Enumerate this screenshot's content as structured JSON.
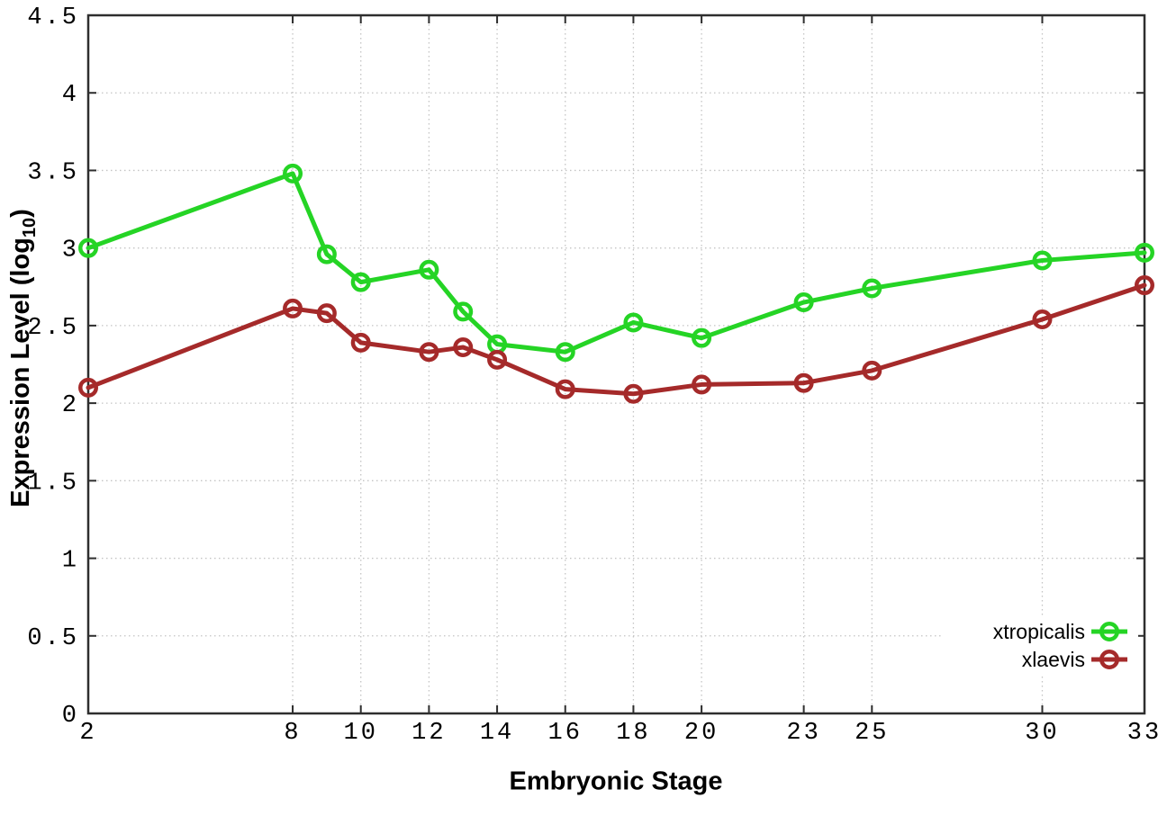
{
  "figure": {
    "background": "#ffffff",
    "xlabel": "Embryonic Stage",
    "ylabel_main": "Expression Level (log",
    "ylabel_sub": "10",
    "ylabel_close": ")"
  },
  "chart_data": {
    "type": "line",
    "title": "",
    "xlabel": "Embryonic Stage",
    "ylabel": "Expression Level (log10)",
    "x": [
      2,
      8,
      9,
      10,
      12,
      13,
      14,
      16,
      18,
      20,
      23,
      25,
      30,
      33
    ],
    "series": [
      {
        "name": "xtropicalis",
        "color": "#25d425",
        "values": [
          3.0,
          3.48,
          2.96,
          2.78,
          2.86,
          2.59,
          2.38,
          2.33,
          2.52,
          2.42,
          2.65,
          2.74,
          2.92,
          2.97
        ]
      },
      {
        "name": "xlaevis",
        "color": "#a52a2a",
        "values": [
          2.1,
          2.61,
          2.58,
          2.39,
          2.33,
          2.36,
          2.28,
          2.09,
          2.06,
          2.12,
          2.13,
          2.21,
          2.54,
          2.76
        ]
      }
    ],
    "xlim": [
      2,
      33
    ],
    "ylim": [
      0,
      4.5
    ],
    "x_ticks": [
      2,
      8,
      10,
      12,
      14,
      16,
      18,
      20,
      23,
      25,
      30,
      33
    ],
    "x_tick_labels": [
      "2",
      "8",
      "10",
      "12",
      "14",
      "16",
      "18",
      "20",
      "23",
      "25",
      "30",
      "33"
    ],
    "y_ticks": [
      0,
      0.5,
      1,
      1.5,
      2,
      2.5,
      3,
      3.5,
      4,
      4.5
    ],
    "y_tick_labels": [
      "0",
      "0.5",
      "1",
      "1.5",
      "2",
      "2.5",
      "3",
      "3.5",
      "4",
      "4.5"
    ],
    "grid": true,
    "grid_style": "dotted",
    "grid_color": "#c4c4c4",
    "border_color": "#2e2e2e",
    "marker": "open-circle",
    "legend_position": "bottom-right-inside",
    "legend_entries": [
      "xtropicalis",
      "xlaevis"
    ]
  }
}
